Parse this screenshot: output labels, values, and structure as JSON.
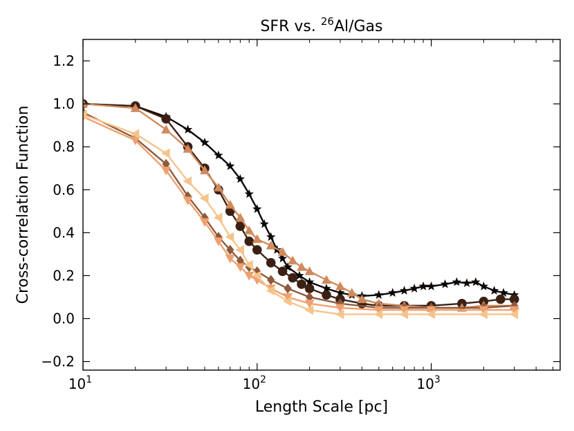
{
  "chart_data": {
    "type": "line",
    "title": "SFR vs. ",
    "title_sup": "26",
    "title_tail": "Al/Gas",
    "xlabel": "Length Scale [pc]",
    "ylabel": "Cross-correlation Function",
    "xscale": "log",
    "xlim": [
      10,
      5500
    ],
    "ylim": [
      -0.24,
      1.3
    ],
    "yticks": [
      -0.2,
      0.0,
      0.2,
      0.4,
      0.6,
      0.8,
      1.0,
      1.2
    ],
    "ytick_labels": [
      "−0.2",
      "0.0",
      "0.2",
      "0.4",
      "0.6",
      "0.8",
      "1.0",
      "1.2"
    ],
    "xticks": [
      {
        "value": 10,
        "base": "10",
        "exp": "1"
      },
      {
        "value": 100,
        "base": "10",
        "exp": "2"
      },
      {
        "value": 1000,
        "base": "10",
        "exp": "3"
      }
    ],
    "legend": "none",
    "series": [
      {
        "name": "series-1",
        "color": "#0b0705",
        "marker": "star",
        "x": [
          10,
          20,
          30,
          40,
          50,
          60,
          70,
          80,
          90,
          100,
          110,
          120,
          130,
          140,
          150,
          175,
          200,
          250,
          300,
          350,
          400,
          500,
          600,
          700,
          800,
          900,
          1000,
          1200,
          1400,
          1600,
          1800,
          2000,
          2300,
          2600,
          3000
        ],
        "y": [
          1.0,
          0.99,
          0.94,
          0.88,
          0.82,
          0.76,
          0.71,
          0.65,
          0.58,
          0.51,
          0.44,
          0.38,
          0.32,
          0.28,
          0.24,
          0.2,
          0.17,
          0.14,
          0.12,
          0.11,
          0.105,
          0.11,
          0.12,
          0.13,
          0.14,
          0.15,
          0.15,
          0.16,
          0.17,
          0.165,
          0.17,
          0.15,
          0.13,
          0.12,
          0.11
        ]
      },
      {
        "name": "series-2",
        "color": "#3b2014",
        "marker": "circle",
        "x": [
          10,
          20,
          30,
          40,
          50,
          60,
          70,
          80,
          90,
          100,
          120,
          140,
          160,
          180,
          200,
          250,
          300,
          400,
          500,
          700,
          1000,
          1500,
          2000,
          2500,
          3000
        ],
        "y": [
          1.0,
          0.99,
          0.93,
          0.8,
          0.7,
          0.6,
          0.5,
          0.43,
          0.36,
          0.32,
          0.26,
          0.22,
          0.19,
          0.16,
          0.14,
          0.11,
          0.09,
          0.07,
          0.06,
          0.06,
          0.06,
          0.07,
          0.08,
          0.09,
          0.09
        ]
      },
      {
        "name": "series-3",
        "color": "#d08a5c",
        "marker": "triangle-up",
        "x": [
          10,
          20,
          30,
          40,
          50,
          60,
          70,
          80,
          90,
          100,
          120,
          140,
          160,
          180,
          200,
          250,
          300,
          350,
          400,
          500,
          700,
          1000,
          1500,
          2000,
          3000
        ],
        "y": [
          1.0,
          0.98,
          0.88,
          0.79,
          0.69,
          0.61,
          0.53,
          0.47,
          0.41,
          0.37,
          0.34,
          0.31,
          0.27,
          0.24,
          0.22,
          0.18,
          0.15,
          0.12,
          0.09,
          0.07,
          0.06,
          0.05,
          0.05,
          0.06,
          0.06
        ]
      },
      {
        "name": "series-4",
        "color": "#8c5a3c",
        "marker": "diamond",
        "x": [
          10,
          20,
          30,
          40,
          50,
          60,
          70,
          80,
          90,
          100,
          120,
          150,
          200,
          300,
          500,
          700,
          1000,
          2000,
          3000
        ],
        "y": [
          0.96,
          0.84,
          0.72,
          0.57,
          0.47,
          0.38,
          0.32,
          0.27,
          0.24,
          0.22,
          0.18,
          0.14,
          0.1,
          0.07,
          0.05,
          0.05,
          0.05,
          0.05,
          0.06
        ]
      },
      {
        "name": "series-5",
        "color": "#efa070",
        "marker": "triangle-down",
        "x": [
          10,
          20,
          30,
          40,
          50,
          60,
          70,
          80,
          90,
          100,
          120,
          150,
          200,
          300,
          500,
          700,
          1000,
          2000,
          3000
        ],
        "y": [
          0.94,
          0.83,
          0.69,
          0.55,
          0.45,
          0.36,
          0.28,
          0.24,
          0.2,
          0.18,
          0.14,
          0.1,
          0.07,
          0.05,
          0.04,
          0.04,
          0.04,
          0.04,
          0.04
        ]
      },
      {
        "name": "series-6",
        "color": "#f5c48c",
        "marker": "triangle-left",
        "x": [
          10,
          20,
          30,
          40,
          50,
          60,
          70,
          80,
          90,
          100,
          120,
          150,
          200,
          300,
          500,
          700,
          1000,
          2000,
          3000
        ],
        "y": [
          0.95,
          0.86,
          0.77,
          0.64,
          0.56,
          0.47,
          0.38,
          0.32,
          0.25,
          0.2,
          0.13,
          0.08,
          0.04,
          0.02,
          0.02,
          0.02,
          0.02,
          0.02,
          0.02
        ]
      }
    ]
  }
}
